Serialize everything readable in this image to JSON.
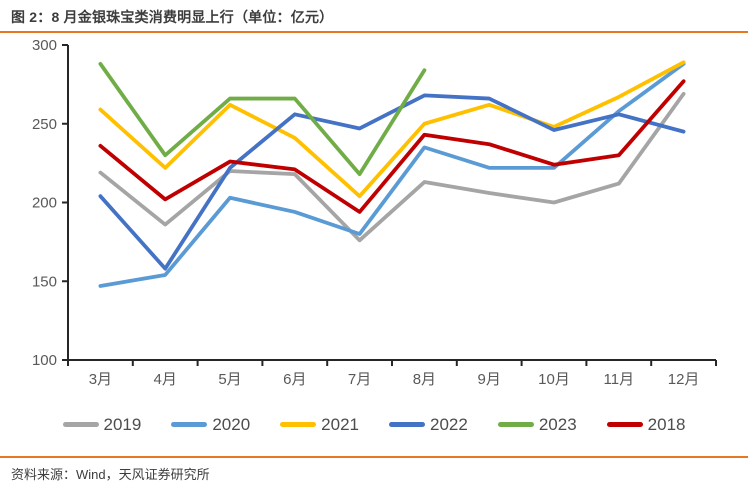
{
  "header": {
    "title": "图 2：8 月金银珠宝类消费明显上行（单位：亿元）"
  },
  "footer": {
    "source": "资料来源：Wind，天风证券研究所"
  },
  "theme": {
    "accent_orange": "#E87722",
    "axis_color": "#262626",
    "tick_label_color": "#595959",
    "title_color": "#3d3d3d",
    "legend_text_color": "#4d4d4d"
  },
  "chart_data": {
    "type": "line",
    "title": "图 2：8 月金银珠宝类消费明显上行（单位：亿元）",
    "xlabel": "",
    "ylabel": "",
    "categories": [
      "3月",
      "4月",
      "5月",
      "6月",
      "7月",
      "8月",
      "9月",
      "10月",
      "11月",
      "12月"
    ],
    "y_ticks": [
      300,
      250,
      200,
      150,
      100
    ],
    "ylim": [
      100,
      300
    ],
    "grid": false,
    "legend_position": "bottom",
    "series": [
      {
        "name": "2019",
        "color": "#A5A5A5",
        "values": [
          219,
          186,
          220,
          218,
          176,
          213,
          206,
          200,
          212,
          269
        ]
      },
      {
        "name": "2020",
        "color": "#5B9BD5",
        "values": [
          147,
          154,
          203,
          194,
          180,
          235,
          222,
          222,
          258,
          288
        ]
      },
      {
        "name": "2021",
        "color": "#FFC000",
        "values": [
          259,
          222,
          262,
          241,
          204,
          250,
          262,
          248,
          267,
          289
        ]
      },
      {
        "name": "2022",
        "color": "#4472C4",
        "values": [
          204,
          158,
          222,
          256,
          247,
          268,
          266,
          246,
          256,
          245
        ]
      },
      {
        "name": "2023",
        "color": "#70AD47",
        "values": [
          288,
          230,
          266,
          266,
          218,
          284,
          null,
          null,
          null,
          null
        ]
      },
      {
        "name": "2018",
        "color": "#C00000",
        "values": [
          236,
          202,
          226,
          221,
          194,
          243,
          237,
          224,
          230,
          277
        ]
      }
    ]
  }
}
